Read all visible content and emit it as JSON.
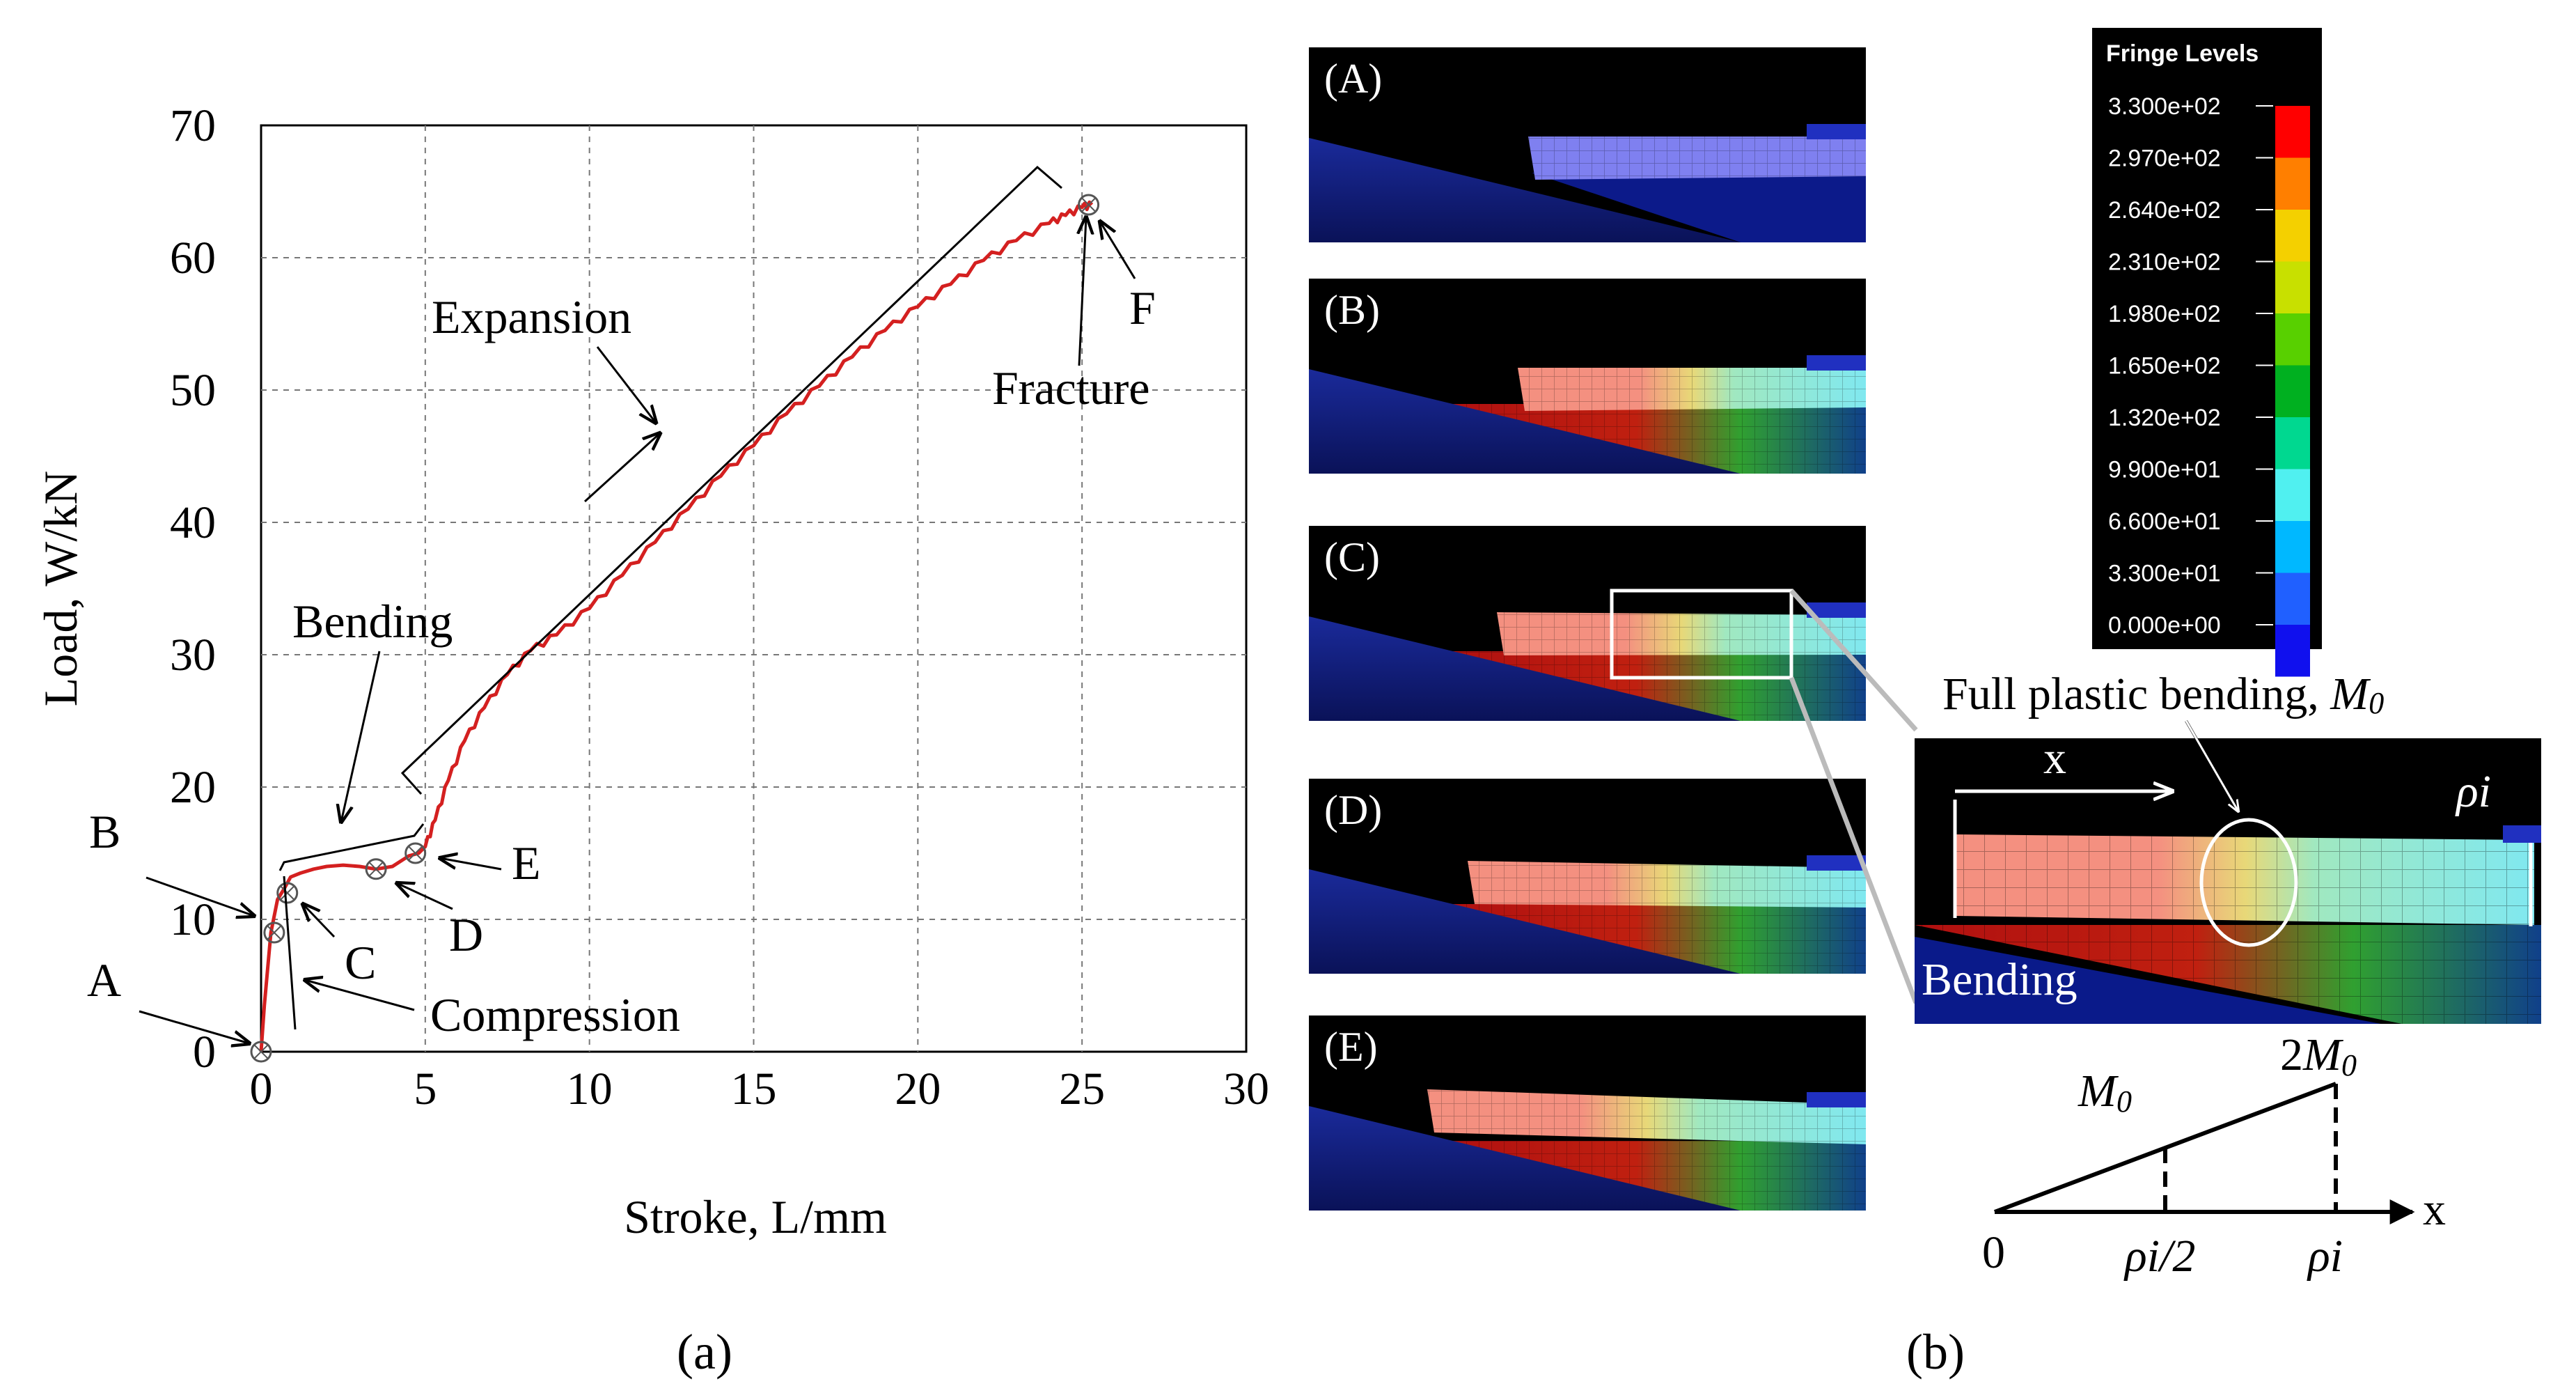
{
  "chart_data": {
    "type": "line",
    "title": "",
    "xlabel": "Stroke, L/mm",
    "ylabel": "Load, W/kN",
    "xlim": [
      0,
      30
    ],
    "ylim": [
      0,
      70
    ],
    "xticks": [
      0,
      5,
      10,
      15,
      20,
      25,
      30
    ],
    "yticks": [
      0,
      10,
      20,
      30,
      40,
      50,
      60,
      70
    ],
    "grid": true,
    "series": [
      {
        "name": "Load-stroke curve",
        "color": "#d42020",
        "x": [
          0,
          0.1,
          0.3,
          0.5,
          0.7,
          0.9,
          1.2,
          1.6,
          2.0,
          2.5,
          3.0,
          3.5,
          4.0,
          4.5,
          4.8,
          5.0,
          5.3,
          5.7,
          6.2,
          6.8,
          7.5,
          8.2,
          9.0,
          10.0,
          11.0,
          12.0,
          13.0,
          14.0,
          15.0,
          16.0,
          17.0,
          18.0,
          19.0,
          20.0,
          21.0,
          22.0,
          23.0,
          24.0,
          24.5,
          25.0,
          25.3
        ],
        "y": [
          0,
          3.5,
          9.0,
          11.5,
          12.3,
          13.2,
          13.5,
          13.8,
          14.0,
          14.1,
          14.0,
          13.8,
          14.0,
          14.8,
          15.0,
          15.5,
          17.5,
          20.5,
          23.5,
          26.0,
          28.5,
          30.3,
          31.5,
          33.5,
          36.0,
          38.5,
          41.0,
          43.5,
          45.8,
          48.2,
          50.3,
          52.5,
          54.5,
          56.3,
          58.0,
          59.8,
          61.3,
          62.6,
          63.2,
          63.8,
          64.0
        ]
      }
    ],
    "points": [
      {
        "label": "A",
        "x": 0,
        "y": 0
      },
      {
        "label": "B",
        "x": 0.4,
        "y": 9.0
      },
      {
        "label": "C",
        "x": 0.8,
        "y": 12.0
      },
      {
        "label": "D",
        "x": 3.5,
        "y": 13.8
      },
      {
        "label": "E",
        "x": 4.7,
        "y": 15.0
      },
      {
        "label": "F",
        "x": 25.2,
        "y": 64.0
      }
    ],
    "annotations": [
      "Compression",
      "Bending",
      "Expansion",
      "Fracture"
    ]
  },
  "panel_a_caption": "(a)",
  "panel_b_caption": "(b)",
  "simulation_panels": [
    {
      "label": "(A)"
    },
    {
      "label": "(B)"
    },
    {
      "label": "(C)"
    },
    {
      "label": "(D)"
    },
    {
      "label": "(E)"
    }
  ],
  "fringe_legend": {
    "title": "Fringe Levels",
    "levels": [
      "3.300e+02",
      "2.970e+02",
      "2.640e+02",
      "2.310e+02",
      "1.980e+02",
      "1.650e+02",
      "1.320e+02",
      "9.900e+01",
      "6.600e+01",
      "3.300e+01",
      "0.000e+00"
    ],
    "colors": [
      "#ff0000",
      "#ff7f00",
      "#f4d000",
      "#c8e000",
      "#58d000",
      "#00b020",
      "#00d890",
      "#50f0f0",
      "#00b8ff",
      "#2060ff",
      "#1010ee"
    ]
  },
  "detail_view": {
    "title": "Full plastic bending, ",
    "title_symbol": "M",
    "title_subscript": "0",
    "x_label": "x",
    "rho_label": "ρi",
    "bending_label": "Bending"
  },
  "moment_diagram": {
    "origin_label": "0",
    "half_label": "ρi/2",
    "full_label": "ρi",
    "axis_label": "x",
    "m0_symbol": "M",
    "m0_subscript": "0",
    "two_m0_prefix": "2",
    "two_m0_symbol": "M",
    "two_m0_subscript": "0",
    "moment_values": [
      0,
      1,
      2
    ]
  }
}
